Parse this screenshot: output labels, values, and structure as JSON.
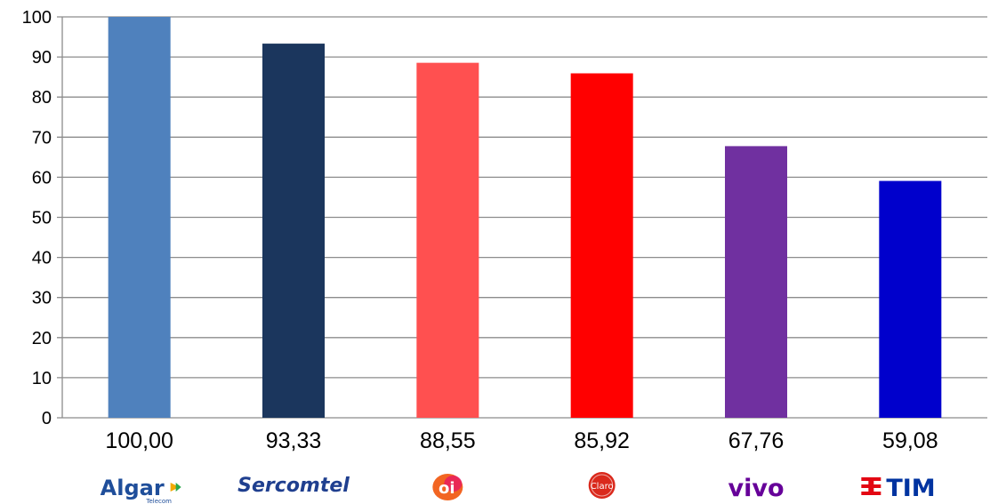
{
  "chart_data": {
    "type": "bar",
    "categories": [
      "Algar Telecom",
      "Sercomtel",
      "oi",
      "Claro",
      "vivo",
      "TIM"
    ],
    "values": [
      100.0,
      93.33,
      88.55,
      85.92,
      67.76,
      59.08
    ],
    "value_labels": [
      "100,00",
      "93,33",
      "88,55",
      "85,92",
      "67,76",
      "59,08"
    ],
    "colors": [
      "#4F81BD",
      "#1B365D",
      "#FF5050",
      "#FF0000",
      "#7030A0",
      "#0000CC"
    ],
    "ylim": [
      0,
      100
    ],
    "yticks": [
      0,
      10,
      20,
      30,
      40,
      50,
      60,
      70,
      80,
      90,
      100
    ],
    "grid": true,
    "legend": "none"
  },
  "logos": [
    {
      "name": "algar-logo",
      "text": "Algar",
      "subtext": "Telecom",
      "color": "#1F4E9A",
      "accent": "#F2A900"
    },
    {
      "name": "sercomtel-logo",
      "text": "Sercomtel",
      "color": "#1F3F8F"
    },
    {
      "name": "oi-logo",
      "text": "oi",
      "color": "#F26522",
      "accent": "#E2007A"
    },
    {
      "name": "claro-logo",
      "text": "Claro",
      "color": "#DA291C"
    },
    {
      "name": "vivo-logo",
      "text": "vivo",
      "color": "#660099"
    },
    {
      "name": "tim-logo",
      "text": "TIM",
      "color": "#0033A0",
      "accent": "#E30613"
    }
  ]
}
